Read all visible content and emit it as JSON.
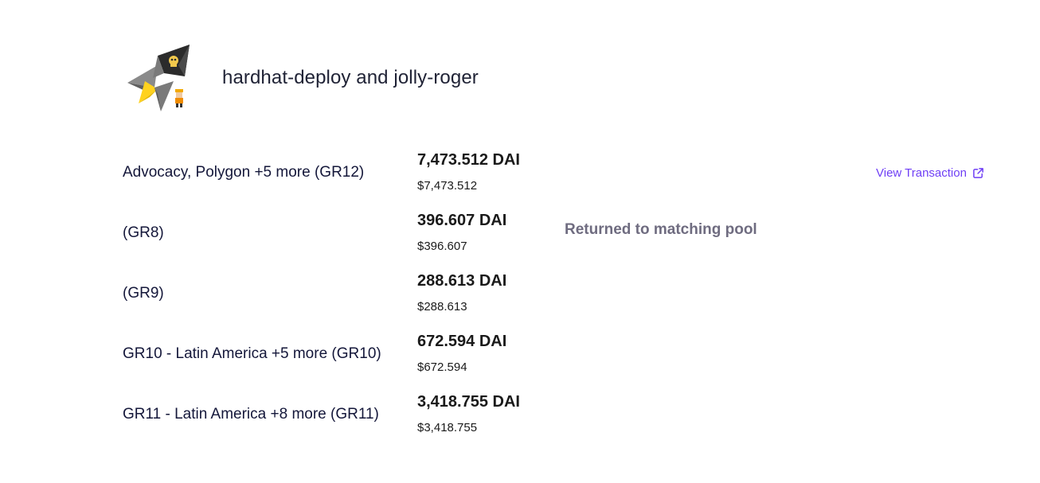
{
  "header": {
    "logo_icon": "hardhat-jolly-roger-logo",
    "title": "hardhat-deploy and jolly-roger"
  },
  "rounds": [
    {
      "name": "Advocacy, Polygon +5 more (GR12)",
      "amount": "7,473.512 DAI",
      "usd": "$7,473.512",
      "link_label": "View Transaction",
      "link_icon": "external-link-icon"
    },
    {
      "name": "(GR8)",
      "amount": "396.607 DAI",
      "usd": "$396.607",
      "status": "Returned to matching pool"
    },
    {
      "name": "(GR9)",
      "amount": "288.613 DAI",
      "usd": "$288.613"
    },
    {
      "name": "GR10 - Latin America +5 more (GR10)",
      "amount": "672.594 DAI",
      "usd": "$672.594"
    },
    {
      "name": "GR11 - Latin America +8 more (GR11)",
      "amount": "3,418.755 DAI",
      "usd": "$3,418.755"
    }
  ],
  "colors": {
    "link": "#6f3ff5",
    "status": "#6f6c80",
    "logo_yellow": "#ffd21f",
    "logo_dark": "#2b2b2b",
    "logo_gray": "#707070"
  }
}
